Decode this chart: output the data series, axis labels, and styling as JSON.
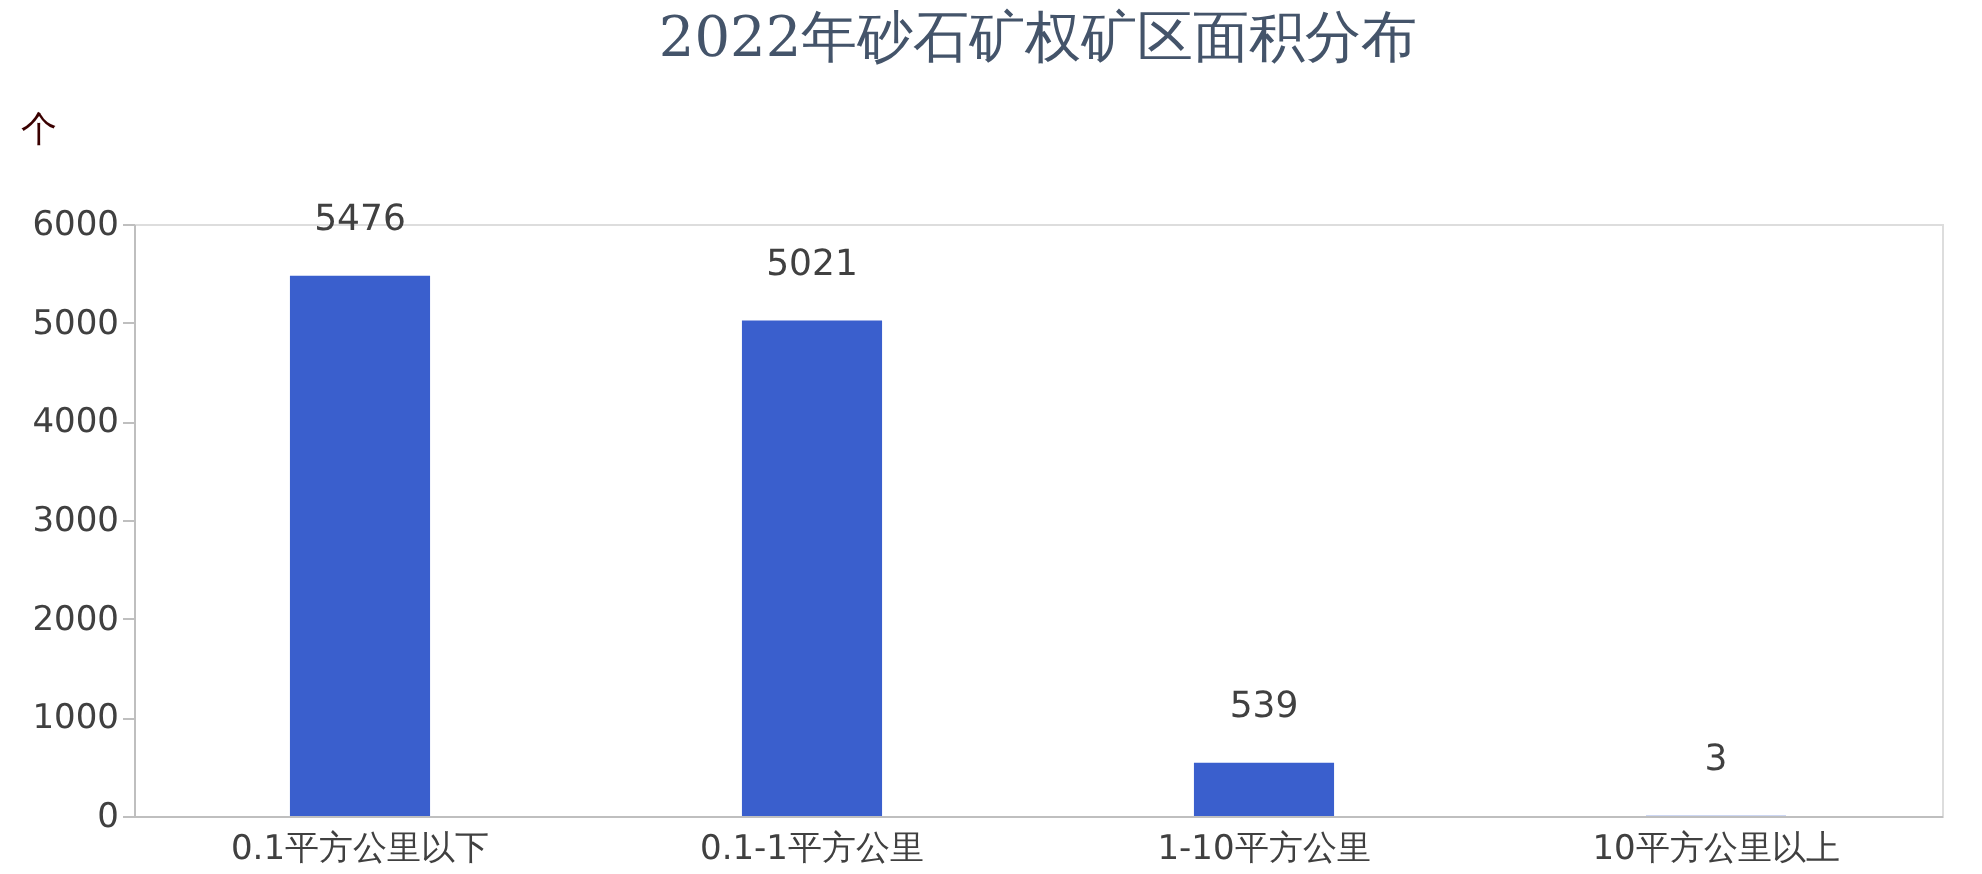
{
  "chart_data": {
    "type": "bar",
    "title": "2022年砂石矿权矿区面积分布",
    "ylabel": "个",
    "categories": [
      "0.1平方公里以下",
      "0.1-1平方公里",
      "1-10平方公里",
      "10平方公里以上"
    ],
    "values": [
      5476,
      5021,
      539,
      3
    ],
    "color": "#3a5fcd",
    "ylim": [
      0,
      6000
    ],
    "yticks": [
      0,
      1000,
      2000,
      3000,
      4000,
      5000,
      6000
    ],
    "grid": false,
    "data_labels": true
  }
}
